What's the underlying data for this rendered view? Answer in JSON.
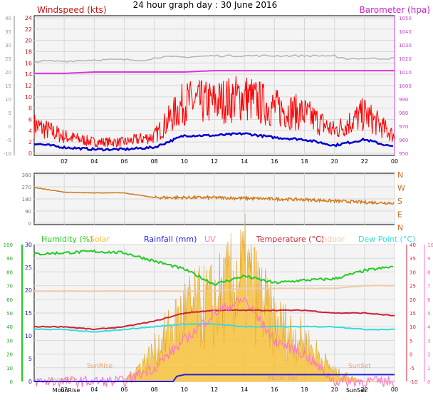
{
  "title": "24 hour graph day : 30 June 2016",
  "colors": {
    "wind": "#ff0000",
    "gust_avg": "#0000cc",
    "baro": "#dd33dd",
    "baro2": "#b4b4b4",
    "dir": "#d07a1c",
    "humidity": "#22cc22",
    "solar": "#f7c23c",
    "rain": "#2222dd",
    "uv": "#ff77cc",
    "temp": "#cc2233",
    "indoor": "#f2c8a8",
    "dew": "#33dddd",
    "plot_bg": "#f4f4f4",
    "grid": "#d8d8d8"
  },
  "top": {
    "left_label": "Windspeed (kts)",
    "right_label": "Barometer (hpa)",
    "left_ticks": [
      "24",
      "22",
      "20",
      "18",
      "16",
      "14",
      "12",
      "10",
      "8",
      "6",
      "4",
      "2",
      "0"
    ],
    "outer_ticks": [
      "40",
      "35",
      "30",
      "25",
      "20",
      "15",
      "10",
      "5",
      "0",
      "-5",
      "-10"
    ],
    "right_ticks": [
      "1050",
      "1040",
      "1030",
      "1020",
      "1010",
      "1000",
      "990",
      "980",
      "970",
      "960",
      "950"
    ],
    "x_ticks": [
      "02",
      "04",
      "06",
      "08",
      "10",
      "12",
      "14",
      "16",
      "18",
      "20",
      "22",
      "00"
    ]
  },
  "middle": {
    "left_ticks": [
      "360",
      "270",
      "180",
      "90",
      "0"
    ],
    "right_ticks": [
      "N",
      "W",
      "S",
      "E",
      "N"
    ]
  },
  "bottom": {
    "legend": [
      {
        "key": "humidity",
        "text": "Humidity (%)"
      },
      {
        "key": "solar",
        "text": "Solar"
      },
      {
        "key": "rain",
        "text": "Rainfall (mm)"
      },
      {
        "key": "uv",
        "text": "UV"
      },
      {
        "key": "temp",
        "text": "Temperature (°C)"
      },
      {
        "key": "indoor",
        "text": "Indoor"
      },
      {
        "key": "dew",
        "text": "Dew Point (°C)"
      }
    ],
    "hum_ticks": [
      "100",
      "90",
      "80",
      "70",
      "60",
      "50",
      "40",
      "30",
      "20",
      "10",
      "0"
    ],
    "rain_ticks": [
      "30",
      "25",
      "20",
      "15",
      "10",
      "5",
      "0"
    ],
    "temp_ticks": [
      "40",
      "35",
      "30",
      "25",
      "20",
      "15",
      "10",
      "5",
      "0",
      "-5",
      "-10"
    ],
    "uv_ticks": [
      "10",
      "9",
      "8",
      "7",
      "6",
      "5",
      "4",
      "3",
      "2",
      "1",
      "0"
    ],
    "x_ticks": [
      "02",
      "04",
      "06",
      "08",
      "10",
      "12",
      "14",
      "16",
      "18",
      "20",
      "22",
      "00"
    ],
    "sunrise": "SunRise",
    "sunset": "SunSet",
    "moonset": "Moon Set",
    "moonrise": "MoonRise",
    "moonrise2": "Moon Rise"
  },
  "chart_data": [
    {
      "type": "line",
      "title": "24 hour graph day : 30 June 2016",
      "x_hours": [
        0,
        2,
        4,
        6,
        8,
        10,
        12,
        14,
        16,
        18,
        20,
        22,
        24
      ],
      "series": [
        {
          "name": "Windspeed (kts)",
          "unit": "kts",
          "values": [
            5,
            3,
            2,
            2,
            3,
            9,
            9,
            10,
            8,
            7,
            4,
            7,
            3
          ]
        },
        {
          "name": "Barometer (hpa)",
          "unit": "hpa",
          "values": [
            1009,
            1009,
            1010,
            1010,
            1010,
            1010,
            1011,
            1011,
            1011,
            1011,
            1011,
            1011,
            1011
          ]
        }
      ],
      "ylim_left": [
        0,
        24
      ],
      "ylim_right": [
        950,
        1050
      ]
    },
    {
      "type": "line",
      "series": [
        {
          "name": "Wind direction",
          "unit": "deg",
          "values": [
            265,
            230,
            225,
            225,
            190,
            190,
            190,
            185,
            180,
            175,
            165,
            155,
            150
          ]
        }
      ],
      "ylim": [
        0,
        360
      ]
    },
    {
      "type": "line",
      "legend_position": "top",
      "series": [
        {
          "name": "Humidity (%)",
          "unit": "%",
          "values": [
            93,
            94,
            95,
            94,
            88,
            82,
            71,
            77,
            72,
            74,
            75,
            81,
            84
          ]
        },
        {
          "name": "Temperature (°C)",
          "unit": "°C",
          "values": [
            10,
            10,
            9,
            10,
            12,
            15,
            16,
            16,
            16,
            16,
            15,
            15,
            14
          ]
        },
        {
          "name": "Dew Point (°C)",
          "unit": "°C",
          "values": [
            9,
            9,
            8,
            9,
            10,
            11,
            11,
            10,
            10,
            10,
            10,
            9,
            9
          ]
        },
        {
          "name": "Indoor",
          "unit": "°C",
          "values": [
            23,
            23,
            23,
            23,
            23,
            23,
            23,
            24,
            24,
            24,
            24,
            25,
            25
          ]
        },
        {
          "name": "Solar",
          "unit": "W/m2",
          "values": [
            0,
            0,
            0,
            5,
            150,
            350,
            400,
            550,
            300,
            200,
            50,
            0,
            0
          ]
        },
        {
          "name": "UV",
          "unit": "index",
          "values": [
            0,
            0,
            0,
            0,
            1,
            3,
            5,
            6,
            3,
            2,
            0,
            0,
            0
          ]
        },
        {
          "name": "Rainfall (mm)",
          "unit": "mm",
          "values": [
            0,
            0,
            0,
            0,
            0,
            1.5,
            1.5,
            1.5,
            1.5,
            1.5,
            1.5,
            1.5,
            1.5
          ]
        }
      ],
      "ylim_humidity": [
        0,
        100
      ],
      "ylim_temperature": [
        -10,
        40
      ],
      "ylim_rain": [
        0,
        30
      ],
      "ylim_uv": [
        0,
        10
      ]
    }
  ]
}
